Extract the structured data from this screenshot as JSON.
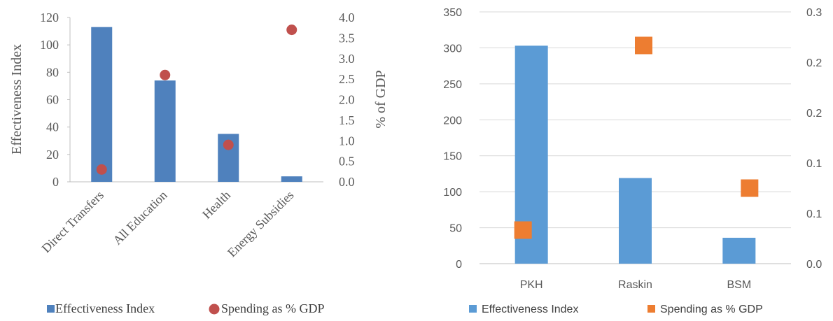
{
  "chart_data": [
    {
      "type": "bar",
      "categories": [
        "Direct Transfers",
        "All Education",
        "Health",
        "Energy Subsidies"
      ],
      "series": [
        {
          "name": "Effectiveness Index",
          "kind": "bar",
          "axis": "left",
          "values": [
            113,
            74,
            35,
            4
          ],
          "color": "#4f81bd"
        },
        {
          "name": "Spending as % GDP",
          "kind": "scatter",
          "axis": "right",
          "values": [
            0.3,
            2.6,
            0.9,
            3.7
          ],
          "color": "#c0504d",
          "marker": "circle"
        }
      ],
      "ylabel": "Effectiveness Index",
      "y2label": "% of GDP",
      "ylim": [
        0,
        120
      ],
      "y2lim": [
        0,
        4.0
      ],
      "yticks": [
        "0",
        "20",
        "40",
        "60",
        "80",
        "100",
        "120"
      ],
      "y2ticks": [
        "0.0",
        "0.5",
        "1.0",
        "1.5",
        "2.0",
        "2.5",
        "3.0",
        "3.5",
        "4.0"
      ],
      "grid": false,
      "legend": "bottom"
    },
    {
      "type": "bar",
      "categories": [
        "PKH",
        "Raskin",
        "BSM"
      ],
      "series": [
        {
          "name": "Effectiveness Index",
          "kind": "bar",
          "axis": "left",
          "values": [
            303,
            119,
            36
          ],
          "color": "#5b9bd5"
        },
        {
          "name": "Spending as % GDP",
          "kind": "scatter",
          "axis": "right",
          "values": [
            0.04,
            0.26,
            0.09
          ],
          "color": "#ed7d31",
          "marker": "square"
        }
      ],
      "ylim": [
        0,
        350
      ],
      "y2lim": [
        0,
        0.3
      ],
      "yticks": [
        "0",
        "50",
        "100",
        "150",
        "200",
        "250",
        "300",
        "350"
      ],
      "y2ticks": [
        "0.0",
        "0.1",
        "0.1",
        "0.2",
        "0.2",
        "0.3"
      ],
      "grid": true,
      "legend": "bottom"
    }
  ]
}
